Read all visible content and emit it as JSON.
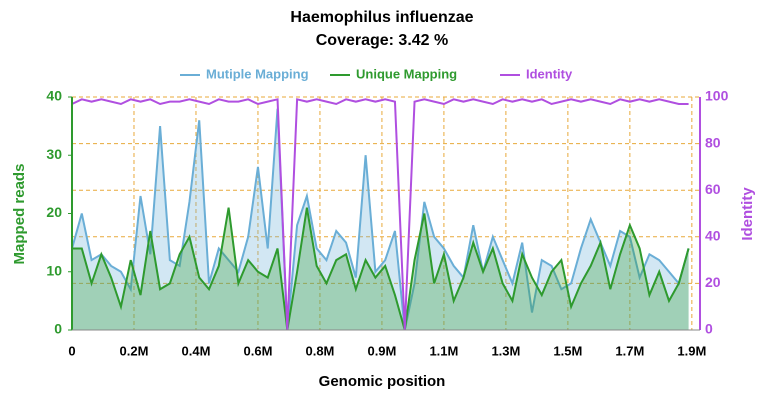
{
  "chart_data": {
    "type": "line",
    "title": "Haemophilus influenzae",
    "subtitle": "Coverage:  3.42 %",
    "xlabel": "Genomic position",
    "ylabel": "Mapped reads",
    "y2label": "Identity",
    "grid": true,
    "legend": "top",
    "x": [
      0,
      30000,
      60000,
      90000,
      120000,
      150000,
      180000,
      210000,
      240000,
      270000,
      300000,
      330000,
      360000,
      390000,
      420000,
      450000,
      480000,
      510000,
      540000,
      570000,
      600000,
      630000,
      660000,
      690000,
      720000,
      750000,
      780000,
      810000,
      840000,
      870000,
      900000,
      930000,
      960000,
      990000,
      1020000,
      1050000,
      1080000,
      1110000,
      1140000,
      1170000,
      1200000,
      1230000,
      1260000,
      1290000,
      1320000,
      1350000,
      1380000,
      1410000,
      1440000,
      1470000,
      1500000,
      1530000,
      1560000,
      1590000,
      1620000,
      1650000,
      1680000,
      1710000,
      1740000,
      1770000,
      1800000,
      1830000,
      1860000,
      1890000
    ],
    "series": [
      {
        "name": "Mutiple Mapping",
        "color": "#6aaed6",
        "area": true,
        "values": [
          14,
          20,
          12,
          13,
          11,
          10,
          7,
          23,
          13,
          35,
          12,
          11,
          22,
          36,
          8,
          14,
          12,
          10,
          16,
          28,
          14,
          38,
          0,
          18,
          23,
          14,
          12,
          17,
          15,
          9,
          30,
          10,
          12,
          17,
          0,
          8,
          22,
          16,
          14,
          11,
          9,
          18,
          10,
          16,
          12,
          8,
          15,
          3,
          12,
          11,
          7,
          8,
          14,
          19,
          15,
          11,
          17,
          16,
          9,
          13,
          12,
          10,
          8,
          14
        ]
      },
      {
        "name": "Unique Mapping",
        "color": "#2e9a2e",
        "area": true,
        "values": [
          14,
          14,
          8,
          13,
          9,
          4,
          12,
          6,
          17,
          7,
          8,
          13,
          16,
          9,
          7,
          11,
          21,
          8,
          12,
          10,
          9,
          14,
          0,
          10,
          21,
          11,
          8,
          12,
          13,
          7,
          12,
          9,
          11,
          6,
          0,
          12,
          20,
          8,
          13,
          5,
          9,
          15,
          10,
          14,
          8,
          5,
          13,
          9,
          6,
          10,
          12,
          4,
          8,
          11,
          15,
          7,
          13,
          18,
          14,
          6,
          10,
          5,
          8,
          14
        ]
      },
      {
        "name": "Identity",
        "color": "#b04fe0",
        "axis": "y2",
        "area": false,
        "values": [
          97,
          99,
          98,
          99,
          98,
          97,
          99,
          98,
          99,
          97,
          98,
          98,
          99,
          98,
          97,
          99,
          98,
          98,
          99,
          97,
          98,
          99,
          0,
          99,
          98,
          99,
          98,
          97,
          99,
          98,
          99,
          98,
          99,
          98,
          0,
          98,
          99,
          98,
          97,
          99,
          98,
          99,
          98,
          97,
          99,
          98,
          99,
          98,
          99,
          97,
          98,
          99,
          98,
          99,
          98,
          97,
          99,
          98,
          99,
          98,
          99,
          98,
          97,
          97
        ]
      }
    ],
    "xlim": [
      0,
      1925000
    ],
    "xticks": [
      0,
      {
        "value": 190000,
        "label": "0.2M"
      },
      {
        "value": 380000,
        "label": "0.4M"
      },
      {
        "value": 570000,
        "label": "0.6M"
      },
      {
        "value": 760000,
        "label": "0.8M"
      },
      {
        "value": 950000,
        "label": "0.9M"
      },
      {
        "value": 1140000,
        "label": "1.1M"
      },
      {
        "value": 1330000,
        "label": "1.3M"
      },
      {
        "value": 1520000,
        "label": "1.5M"
      },
      {
        "value": 1710000,
        "label": "1.7M"
      },
      {
        "value": 1900000,
        "label": "1.9M"
      }
    ],
    "ylim": [
      0,
      40
    ],
    "yticks": [
      0,
      10,
      20,
      30,
      40
    ],
    "y2lim": [
      0,
      100
    ],
    "y2ticks": [
      0,
      20,
      40,
      60,
      80,
      100
    ]
  }
}
